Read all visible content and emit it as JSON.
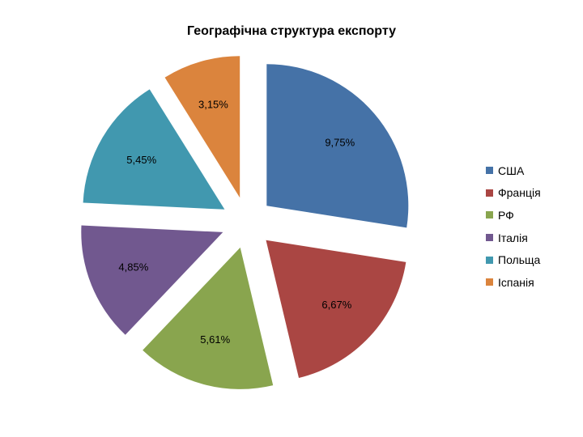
{
  "chart_data": {
    "type": "pie",
    "title": "Географічна структура експорту",
    "exploded": true,
    "slices": [
      {
        "name": "США",
        "value": 9.75,
        "label": "9,75%",
        "color": "#4572A7"
      },
      {
        "name": "Франція",
        "value": 6.67,
        "label": "6,67%",
        "color": "#AA4643"
      },
      {
        "name": "РФ",
        "value": 5.61,
        "label": "5,61%",
        "color": "#89A54E"
      },
      {
        "name": "Італія",
        "value": 4.85,
        "label": "4,85%",
        "color": "#71588F"
      },
      {
        "name": "Польща",
        "value": 5.45,
        "label": "5,45%",
        "color": "#4198AF"
      },
      {
        "name": "Іспанія",
        "value": 3.15,
        "label": "3,15%",
        "color": "#DB843D"
      }
    ],
    "legend_position": "right"
  }
}
